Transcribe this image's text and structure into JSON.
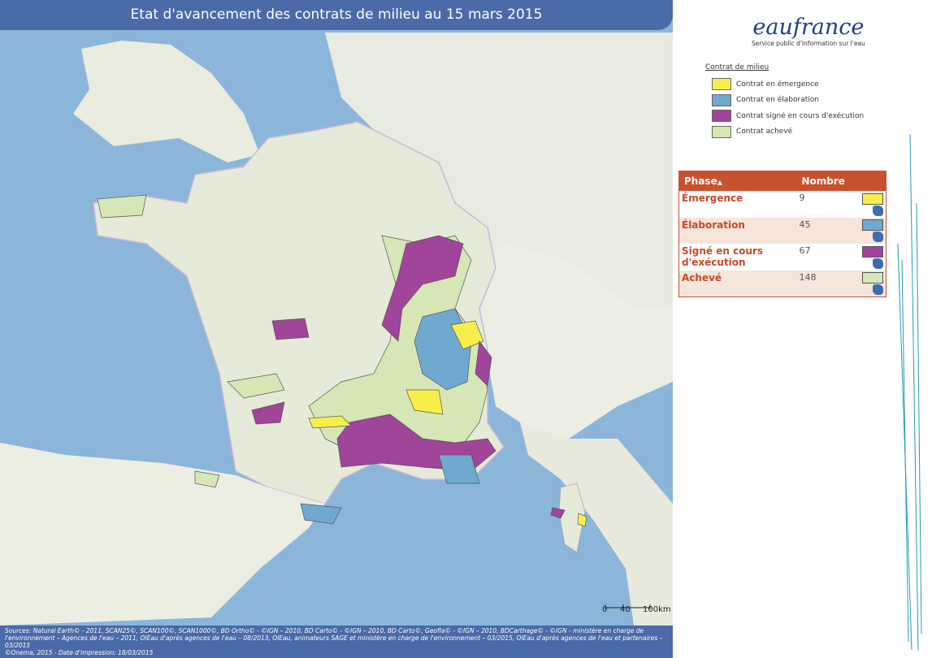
{
  "header": {
    "title": "Etat d'avancement des contrats de milieu au 15 mars 2015"
  },
  "logo": {
    "name": "eaufrance",
    "tagline": "Service public d'information sur l'eau"
  },
  "legend": {
    "title": "Contrat de milieu",
    "items": [
      {
        "label": "Contrat en émergence",
        "color": "#f7ee4b"
      },
      {
        "label": "Contrat en élaboration",
        "color": "#6fa9cf"
      },
      {
        "label": "Contrat signé en cours d'exécution",
        "color": "#a0459a"
      },
      {
        "label": "Contrat achevé",
        "color": "#d6e6b5"
      }
    ]
  },
  "table": {
    "headers": [
      "Phase",
      "Nombre"
    ],
    "rows": [
      [
        "Émergence",
        9
      ],
      [
        "Élaboration",
        45
      ],
      [
        "Signé en cours d'exécution",
        67
      ],
      [
        "Achevé",
        148
      ]
    ]
  },
  "scale": {
    "labels": [
      "0",
      "40",
      "100km"
    ]
  },
  "footer": {
    "lines": [
      "Sources: Natural Earth© - 2011, SCAN25©, SCAN100©, SCAN1000©, BD Ortho© - ©IGN – 2010, BD Carto© - ©IGN – 2010, BD Carto©, Geofla© - ©IGN – 2010, BDCarthage© - ©IGN - ministère en charge de l'environnement – Agences de l'eau – 2011, OIEau d'après agences de l'eau – 08/2013, OIEau, animateurs SAGE et ministère en charge de l'environnement – 03/2015, OIEau d'après agences de l'eau et partenaires – 03/2015",
      "©Onema, 2015 - Date d'impression: 18/03/2015"
    ]
  }
}
